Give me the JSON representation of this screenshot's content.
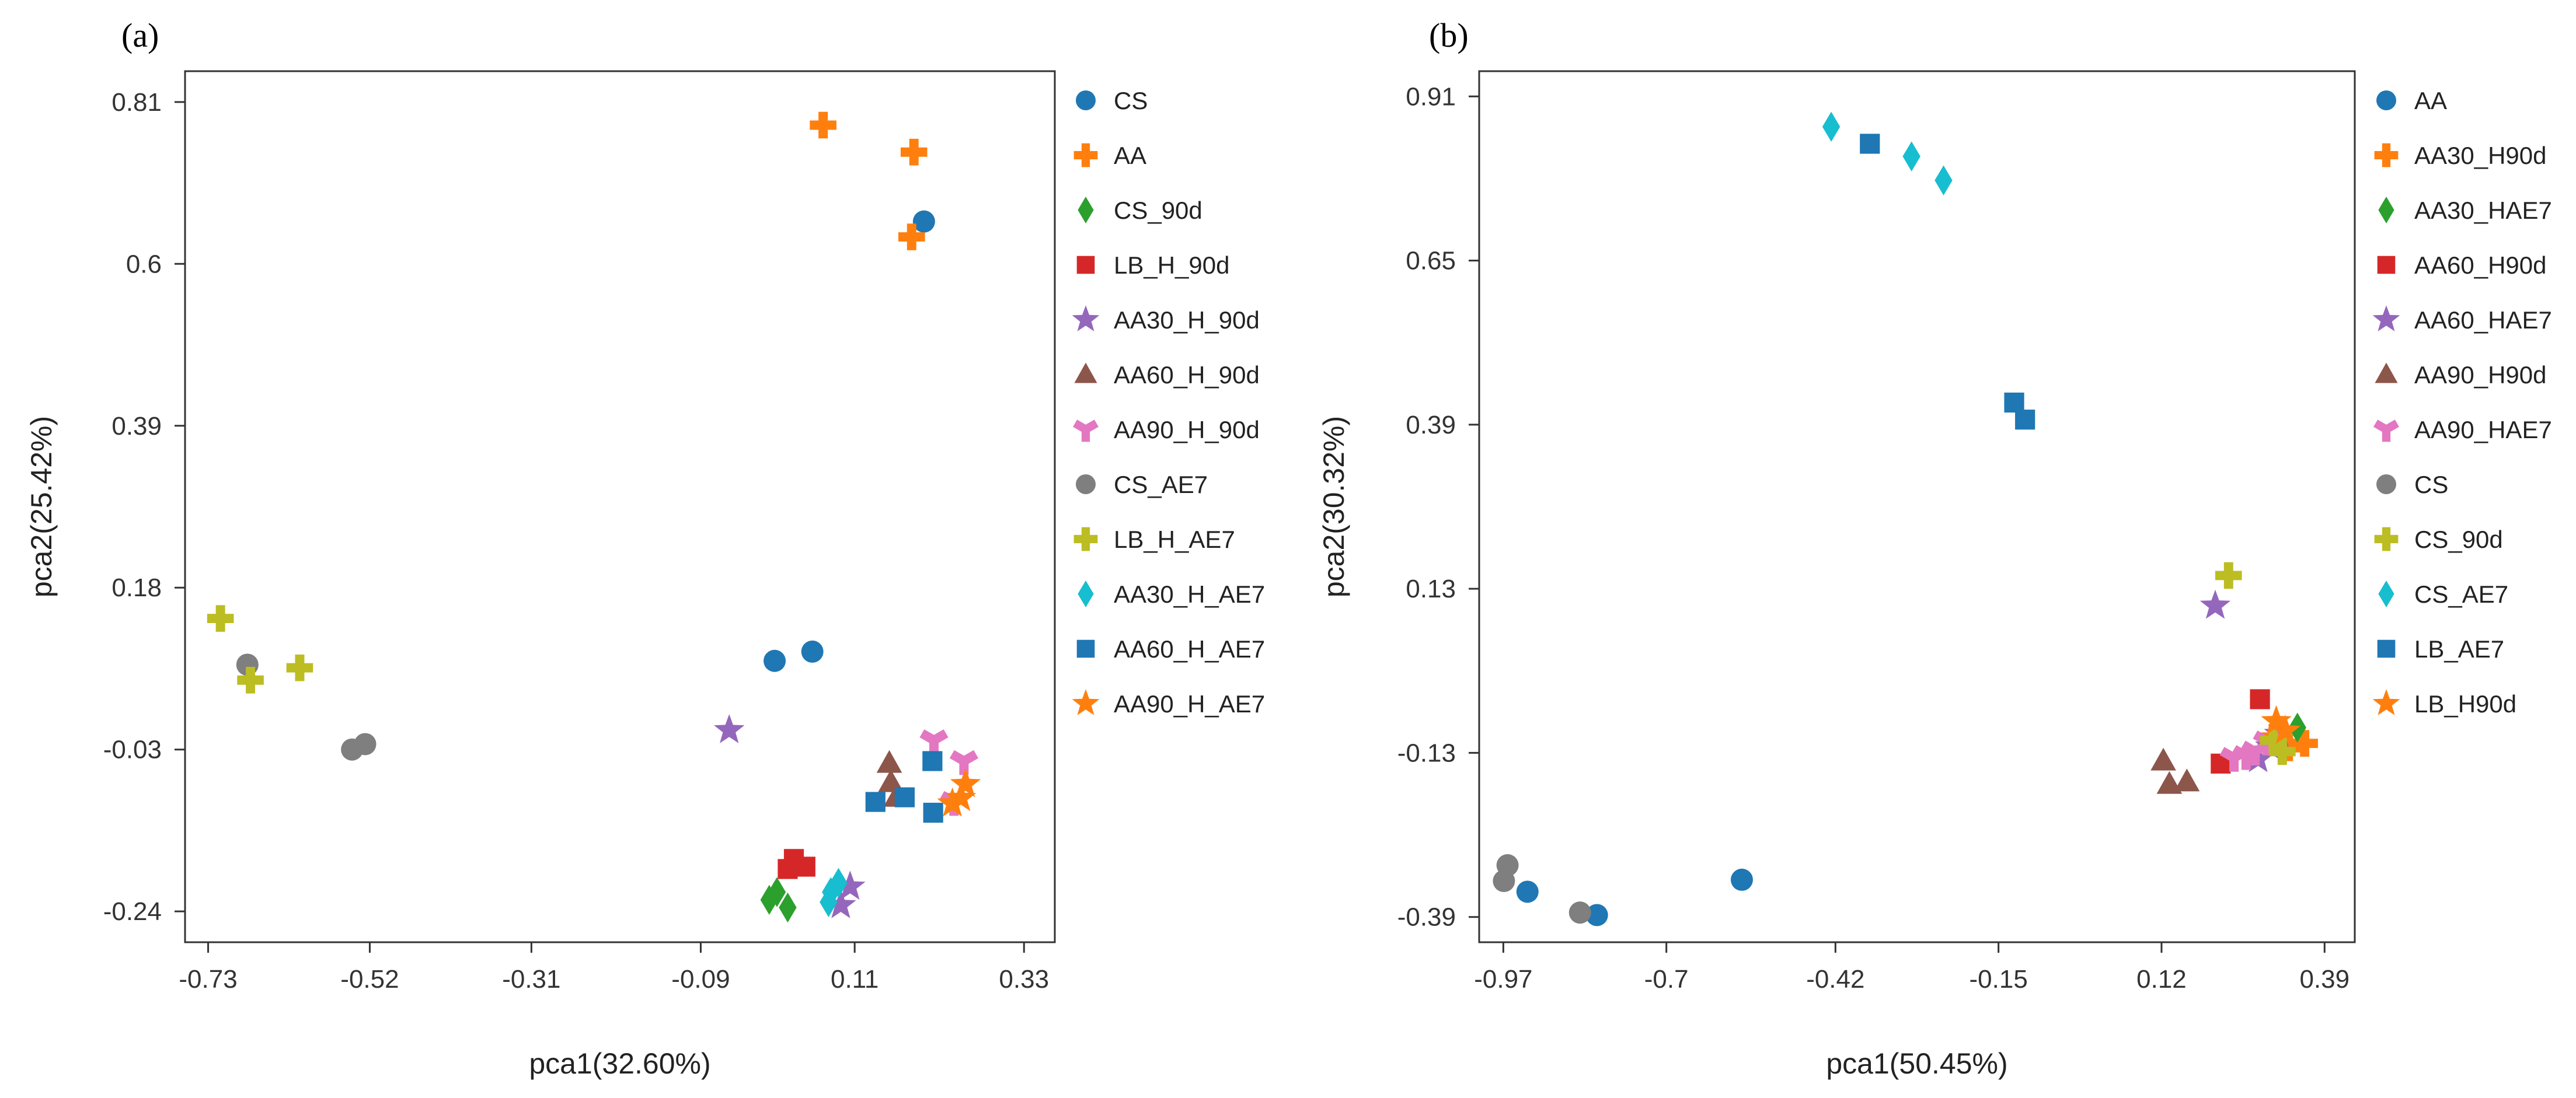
{
  "colors": {
    "blue": "#1f77b4",
    "orange": "#ff7f0e",
    "green": "#2ca02c",
    "red": "#d62728",
    "purple": "#9467bd",
    "brown": "#8c564b",
    "pink": "#e377c2",
    "gray": "#7f7f7f",
    "olive": "#bcbd22",
    "cyan": "#17becf"
  },
  "chart_data": [
    {
      "type": "scatter",
      "panel_label": "(a)",
      "xlabel": "pca1(32.60%)",
      "ylabel": "pca2(25.42%)",
      "xlim": [
        -0.76,
        0.37
      ],
      "ylim": [
        -0.28,
        0.85
      ],
      "xticks": [
        -0.73,
        -0.52,
        -0.31,
        -0.09,
        0.11,
        0.33
      ],
      "xtick_labels": [
        "-0.73",
        "-0.52",
        "-0.31",
        "-0.09",
        "0.11",
        "0.33"
      ],
      "yticks": [
        -0.24,
        -0.03,
        0.18,
        0.39,
        0.6,
        0.81
      ],
      "ytick_labels": [
        "-0.24",
        "-0.03",
        "0.18",
        "0.39",
        "0.6",
        "0.81"
      ],
      "legend_position": "right",
      "series": [
        {
          "name": "CS",
          "color": "blue",
          "marker": "circle",
          "points": [
            [
              0.2,
              0.655
            ],
            [
              0.006,
              0.085
            ],
            [
              0.055,
              0.097
            ]
          ]
        },
        {
          "name": "AA",
          "color": "orange",
          "marker": "plus",
          "points": [
            [
              0.069,
              0.78
            ],
            [
              0.187,
              0.745
            ],
            [
              0.184,
              0.635
            ]
          ]
        },
        {
          "name": "CS_90d",
          "color": "green",
          "marker": "diamond",
          "points": [
            [
              -0.001,
              -0.225
            ],
            [
              0.009,
              -0.215
            ],
            [
              0.023,
              -0.235
            ]
          ]
        },
        {
          "name": "LB_H_90d",
          "color": "red",
          "marker": "square",
          "points": [
            [
              0.023,
              -0.185
            ],
            [
              0.031,
              -0.172
            ],
            [
              0.046,
              -0.182
            ]
          ]
        },
        {
          "name": "AA30_H_90d",
          "color": "purple",
          "marker": "star",
          "points": [
            [
              -0.053,
              -0.005
            ],
            [
              0.092,
              -0.232
            ],
            [
              0.104,
              -0.208
            ]
          ]
        },
        {
          "name": "AA60_H_90d",
          "color": "brown",
          "marker": "triangle",
          "points": [
            [
              0.155,
              -0.048
            ],
            [
              0.157,
              -0.073
            ],
            [
              0.164,
              -0.092
            ]
          ]
        },
        {
          "name": "AA90_H_90d",
          "color": "pink",
          "marker": "tri-down",
          "points": [
            [
              0.213,
              -0.018
            ],
            [
              0.252,
              -0.045
            ],
            [
              0.239,
              -0.098
            ]
          ]
        },
        {
          "name": "CS_AE7",
          "color": "gray",
          "marker": "circle",
          "points": [
            [
              -0.679,
              0.08
            ],
            [
              -0.543,
              -0.03
            ],
            [
              -0.526,
              -0.023
            ]
          ]
        },
        {
          "name": "LB_H_AE7",
          "color": "olive",
          "marker": "plus",
          "points": [
            [
              -0.714,
              0.14
            ],
            [
              -0.675,
              0.06
            ],
            [
              -0.611,
              0.076
            ]
          ]
        },
        {
          "name": "AA30_H_AE7",
          "color": "cyan",
          "marker": "diamond",
          "points": [
            [
              0.076,
              -0.228
            ],
            [
              0.079,
              -0.215
            ],
            [
              0.089,
              -0.203
            ]
          ]
        },
        {
          "name": "AA60_H_AE7",
          "color": "blue",
          "marker": "square",
          "points": [
            [
              0.137,
              -0.098
            ],
            [
              0.175,
              -0.092
            ],
            [
              0.211,
              -0.045
            ],
            [
              0.212,
              -0.112
            ]
          ]
        },
        {
          "name": "AA90_H_AE7",
          "color": "orange",
          "marker": "star",
          "points": [
            [
              0.237,
              -0.1
            ],
            [
              0.248,
              -0.093
            ],
            [
              0.254,
              -0.075
            ]
          ]
        }
      ]
    },
    {
      "type": "scatter",
      "panel_label": "(b)",
      "xlabel": "pca1(50.45%)",
      "ylabel": "pca2(30.32%)",
      "xlim": [
        -1.01,
        0.44
      ],
      "ylim": [
        -0.43,
        0.95
      ],
      "xticks": [
        -0.97,
        -0.7,
        -0.42,
        -0.15,
        0.12,
        0.39
      ],
      "xtick_labels": [
        "-0.97",
        "-0.7",
        "-0.42",
        "-0.15",
        "0.12",
        "0.39"
      ],
      "yticks": [
        -0.39,
        -0.13,
        0.13,
        0.39,
        0.65,
        0.91
      ],
      "ytick_labels": [
        "-0.39",
        "-0.13",
        "0.13",
        "0.39",
        "0.65",
        "0.91"
      ],
      "legend_position": "right",
      "series": [
        {
          "name": "AA",
          "color": "blue",
          "marker": "circle",
          "points": [
            [
              -0.93,
              -0.35
            ],
            [
              -0.815,
              -0.387
            ],
            [
              -0.575,
              -0.331
            ]
          ]
        },
        {
          "name": "AA30_H90d",
          "color": "orange",
          "marker": "plus",
          "points": [
            [
              0.305,
              -0.105
            ],
            [
              0.33,
              -0.122
            ],
            [
              0.357,
              -0.115
            ]
          ]
        },
        {
          "name": "AA30_HAE7",
          "color": "green",
          "marker": "diamond",
          "points": [
            [
              0.315,
              -0.095
            ],
            [
              0.345,
              -0.09
            ]
          ]
        },
        {
          "name": "AA60_H90d",
          "color": "red",
          "marker": "square",
          "points": [
            [
              0.283,
              -0.045
            ],
            [
              0.218,
              -0.147
            ]
          ]
        },
        {
          "name": "AA60_HAE7",
          "color": "purple",
          "marker": "star",
          "points": [
            [
              0.209,
              0.103
            ],
            [
              0.28,
              -0.14
            ],
            [
              0.3,
              -0.12
            ],
            [
              0.315,
              -0.1
            ]
          ]
        },
        {
          "name": "AA90_H90d",
          "color": "brown",
          "marker": "triangle",
          "points": [
            [
              0.123,
              -0.143
            ],
            [
              0.133,
              -0.18
            ],
            [
              0.162,
              -0.176
            ]
          ]
        },
        {
          "name": "AA90_HAE7",
          "color": "pink",
          "marker": "tri-down",
          "points": [
            [
              0.24,
              -0.138
            ],
            [
              0.26,
              -0.135
            ],
            [
              0.275,
              -0.128
            ],
            [
              0.295,
              -0.112
            ]
          ]
        },
        {
          "name": "CS",
          "color": "gray",
          "marker": "circle",
          "points": [
            [
              -0.963,
              -0.308
            ],
            [
              -0.969,
              -0.333
            ],
            [
              -0.843,
              -0.383
            ]
          ]
        },
        {
          "name": "CS_90d",
          "color": "olive",
          "marker": "plus",
          "points": [
            [
              0.231,
              0.151
            ],
            [
              0.32,
              -0.128
            ],
            [
              0.305,
              -0.11
            ]
          ]
        },
        {
          "name": "CS_AE7",
          "color": "cyan",
          "marker": "diamond",
          "points": [
            [
              -0.427,
              0.862
            ],
            [
              -0.294,
              0.815
            ],
            [
              -0.241,
              0.777
            ]
          ]
        },
        {
          "name": "LB_AE7",
          "color": "blue",
          "marker": "square",
          "points": [
            [
              -0.363,
              0.835
            ],
            [
              -0.124,
              0.425
            ],
            [
              -0.106,
              0.398
            ]
          ]
        },
        {
          "name": "LB_H90d",
          "color": "orange",
          "marker": "star",
          "points": [
            [
              0.31,
              -0.08
            ],
            [
              0.325,
              -0.095
            ]
          ]
        }
      ]
    }
  ]
}
